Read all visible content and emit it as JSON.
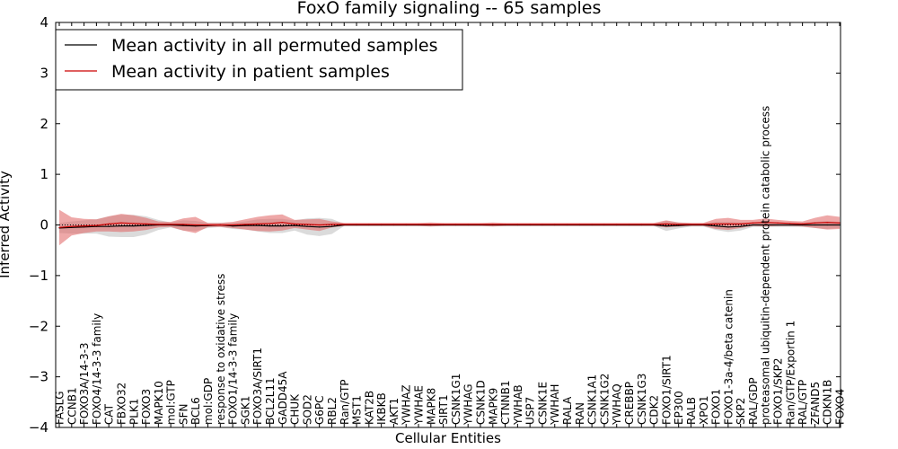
{
  "chart_data": {
    "type": "line",
    "title": "FoxO family signaling -- 65 samples",
    "xlabel": "Cellular Entities",
    "ylabel": "Inferred Activity",
    "ylim": [
      -4,
      4
    ],
    "yticks": [
      4,
      3,
      2,
      1,
      0,
      -1,
      -2,
      -3,
      -4
    ],
    "ytick_labels": [
      "4",
      "3",
      "2",
      "1",
      "0",
      "−1",
      "−2",
      "−3",
      "−4"
    ],
    "legend_position": "top-left",
    "categories": [
      "FASLG",
      "CCNB1",
      "FOXO3A/14-3-3",
      "FOXO4/14-3-3 family",
      "CAT",
      "FBXO32",
      "PLK1",
      "FOXO3",
      "MAPK10",
      "mol:GTP",
      "SFN",
      "BCL6",
      "mol:GDP",
      "response to oxidative stress",
      "FOXO1/14-3-3 family",
      "SGK1",
      "FOXO3A/SIRT1",
      "BCL2L11",
      "GADD45A",
      "CHUK",
      "SOD2",
      "G6PC",
      "RBL2",
      "Ran/GTP",
      "MST1",
      "KAT2B",
      "IKBKB",
      "AKT1",
      "YWHAZ",
      "YWHAE",
      "MAPK8",
      "SIRT1",
      "CSNK1G1",
      "YWHAG",
      "CSNK1D",
      "MAPK9",
      "CTNNB1",
      "YWHAB",
      "USP7",
      "CSNK1E",
      "YWHAH",
      "RALA",
      "RAN",
      "CSNK1A1",
      "CSNK1G2",
      "YWHAQ",
      "CREBBP",
      "CSNK1G3",
      "CDK2",
      "FOXO1/SIRT1",
      "EP300",
      "RALB",
      "XPO1",
      "FOXO1",
      "FOXO1-3a-4/beta catenin",
      "SKP2",
      "RAL/GDP",
      "proteasomal ubiquitin-dependent protein catabolic process",
      "FOXO1/SKP2",
      "Ran/GTP/Exportin 1",
      "RAL/GTP",
      "ZFAND5",
      "CDKN1B",
      "FOXO4"
    ],
    "series": [
      {
        "name": "Mean activity in all permuted samples",
        "color": "#000000",
        "values": [
          -0.06,
          -0.05,
          -0.04,
          -0.03,
          -0.03,
          -0.02,
          -0.02,
          -0.01,
          0,
          0,
          -0.01,
          -0.02,
          -0.01,
          0,
          -0.02,
          -0.01,
          -0.01,
          -0.02,
          -0.02,
          -0.01,
          -0.03,
          -0.04,
          -0.03,
          0,
          0,
          0,
          0,
          0,
          0,
          0,
          0,
          0,
          0,
          0,
          0,
          0,
          0,
          0,
          0,
          0,
          0,
          0,
          0,
          0,
          0,
          0,
          0,
          0,
          0,
          -0.02,
          -0.01,
          0,
          0,
          -0.02,
          -0.04,
          -0.03,
          0,
          0,
          0,
          0,
          0,
          0,
          0,
          0
        ],
        "band": [
          0.1,
          0.12,
          0.13,
          0.14,
          0.2,
          0.22,
          0.22,
          0.18,
          0.1,
          0.05,
          0.1,
          0.1,
          0.05,
          0.04,
          0.06,
          0.08,
          0.12,
          0.14,
          0.14,
          0.1,
          0.16,
          0.18,
          0.15,
          0.02,
          0.02,
          0.02,
          0.02,
          0.02,
          0.02,
          0.02,
          0.02,
          0.02,
          0.02,
          0.02,
          0.02,
          0.02,
          0.02,
          0.02,
          0.02,
          0.02,
          0.02,
          0.02,
          0.02,
          0.02,
          0.02,
          0.02,
          0.02,
          0.02,
          0.02,
          0.1,
          0.06,
          0.03,
          0.03,
          0.08,
          0.1,
          0.08,
          0.04,
          0.04,
          0.04,
          0.04,
          0.04,
          0.06,
          0.08,
          0.06
        ],
        "band_color": "#b0b0b0"
      },
      {
        "name": "Mean activity in patient samples",
        "color": "#cc0000",
        "values": [
          -0.05,
          -0.03,
          -0.02,
          -0.01,
          0.02,
          0.04,
          0.03,
          0.02,
          0.01,
          0.01,
          0.01,
          0,
          0,
          0,
          0,
          0.01,
          0.02,
          0.03,
          0.05,
          0.02,
          0.01,
          0,
          0.01,
          0.01,
          0.01,
          0.01,
          0.01,
          0.01,
          0.01,
          0.01,
          0.01,
          0.01,
          0.01,
          0.01,
          0.01,
          0.01,
          0.01,
          0.01,
          0.01,
          0.01,
          0.01,
          0.01,
          0.01,
          0.01,
          0.01,
          0.01,
          0.01,
          0.01,
          0.01,
          0.02,
          0.01,
          0.01,
          0.01,
          0.02,
          0.02,
          0.02,
          0.04,
          0.05,
          0.04,
          0.03,
          0.02,
          0.04,
          0.05,
          0.04
        ],
        "band": [
          0.35,
          0.18,
          0.14,
          0.12,
          0.15,
          0.18,
          0.16,
          0.12,
          0.06,
          0.05,
          0.12,
          0.16,
          0.04,
          0.04,
          0.06,
          0.1,
          0.14,
          0.16,
          0.16,
          0.08,
          0.1,
          0.12,
          0.06,
          0.03,
          0.03,
          0.03,
          0.03,
          0.03,
          0.03,
          0.03,
          0.04,
          0.03,
          0.03,
          0.03,
          0.03,
          0.04,
          0.03,
          0.03,
          0.03,
          0.03,
          0.03,
          0.03,
          0.03,
          0.03,
          0.03,
          0.03,
          0.03,
          0.03,
          0.03,
          0.07,
          0.04,
          0.03,
          0.03,
          0.1,
          0.12,
          0.08,
          0.06,
          0.08,
          0.06,
          0.05,
          0.05,
          0.1,
          0.14,
          0.12
        ],
        "band_color": "#e06060"
      }
    ]
  }
}
